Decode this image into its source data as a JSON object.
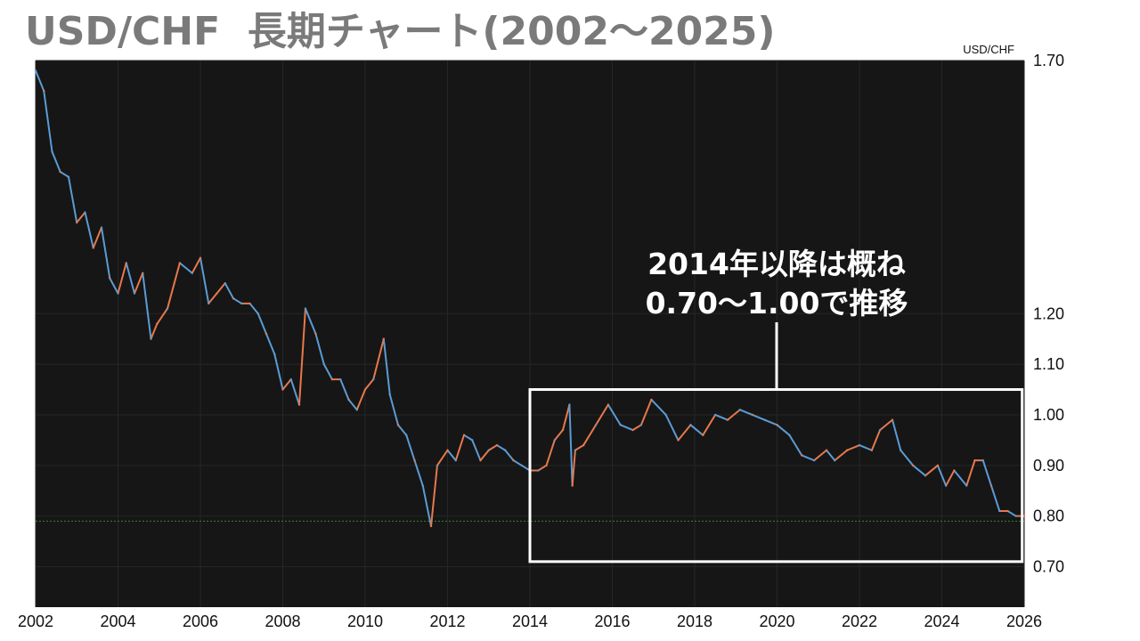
{
  "title": "USD/CHF  長期チャート(2002～2025)",
  "chart_data": {
    "type": "line",
    "series": [
      {
        "name": "USD/CHF",
        "x": [
          2002.0,
          2002.2,
          2002.4,
          2002.6,
          2002.8,
          2003.0,
          2003.2,
          2003.4,
          2003.6,
          2003.8,
          2004.0,
          2004.2,
          2004.4,
          2004.6,
          2004.8,
          2004.95,
          2005.2,
          2005.5,
          2005.8,
          2006.0,
          2006.2,
          2006.4,
          2006.6,
          2006.8,
          2007.0,
          2007.2,
          2007.4,
          2007.6,
          2007.8,
          2008.0,
          2008.2,
          2008.4,
          2008.55,
          2008.8,
          2009.0,
          2009.2,
          2009.4,
          2009.6,
          2009.8,
          2010.0,
          2010.2,
          2010.45,
          2010.6,
          2010.8,
          2011.0,
          2011.2,
          2011.4,
          2011.6,
          2011.75,
          2012.0,
          2012.2,
          2012.4,
          2012.6,
          2012.8,
          2013.0,
          2013.2,
          2013.4,
          2013.6,
          2013.8,
          2014.0,
          2014.2,
          2014.4,
          2014.6,
          2014.8,
          2014.96,
          2015.03,
          2015.1,
          2015.3,
          2015.6,
          2015.9,
          2016.2,
          2016.5,
          2016.7,
          2016.95,
          2017.3,
          2017.6,
          2017.9,
          2018.2,
          2018.5,
          2018.8,
          2019.1,
          2019.4,
          2019.7,
          2020.0,
          2020.3,
          2020.6,
          2020.9,
          2021.2,
          2021.4,
          2021.7,
          2022.0,
          2022.3,
          2022.5,
          2022.8,
          2023.0,
          2023.3,
          2023.6,
          2023.9,
          2024.1,
          2024.3,
          2024.6,
          2024.8,
          2025.0,
          2025.2,
          2025.4,
          2025.6,
          2025.8,
          2026.0
        ],
        "y": [
          1.68,
          1.64,
          1.52,
          1.48,
          1.47,
          1.38,
          1.4,
          1.33,
          1.37,
          1.27,
          1.24,
          1.3,
          1.24,
          1.28,
          1.15,
          1.18,
          1.21,
          1.3,
          1.28,
          1.31,
          1.22,
          1.24,
          1.26,
          1.23,
          1.22,
          1.22,
          1.2,
          1.16,
          1.12,
          1.05,
          1.07,
          1.02,
          1.21,
          1.16,
          1.1,
          1.07,
          1.07,
          1.03,
          1.01,
          1.05,
          1.07,
          1.15,
          1.04,
          0.98,
          0.96,
          0.91,
          0.86,
          0.78,
          0.9,
          0.93,
          0.91,
          0.96,
          0.95,
          0.91,
          0.93,
          0.94,
          0.93,
          0.91,
          0.9,
          0.89,
          0.89,
          0.9,
          0.95,
          0.97,
          1.02,
          0.86,
          0.93,
          0.94,
          0.98,
          1.02,
          0.98,
          0.97,
          0.98,
          1.03,
          1.0,
          0.95,
          0.98,
          0.96,
          1.0,
          0.99,
          1.01,
          1.0,
          0.99,
          0.98,
          0.96,
          0.92,
          0.91,
          0.93,
          0.91,
          0.93,
          0.94,
          0.93,
          0.97,
          0.99,
          0.93,
          0.9,
          0.88,
          0.9,
          0.86,
          0.89,
          0.86,
          0.91,
          0.91,
          0.86,
          0.81,
          0.81,
          0.8,
          0.8
        ]
      }
    ],
    "xlim": [
      2002,
      2026
    ],
    "ylim": [
      0.62,
      1.7
    ],
    "y_ticks": [
      "1.70",
      "1.20",
      "1.10",
      "1.00",
      "0.90",
      "0.80",
      "0.70"
    ],
    "x_ticks": [
      "2002",
      "2004",
      "2006",
      "2008",
      "2010",
      "2012",
      "2014",
      "2016",
      "2018",
      "2020",
      "2022",
      "2024",
      "2026"
    ],
    "reference_line": 0.79,
    "series_label": "USD/CHF",
    "annotation": {
      "lines": [
        "2014年以降は概ね",
        "0.70～1.00で推移"
      ],
      "box_x_range": [
        2014.0,
        2025.95
      ],
      "box_y_range": [
        0.71,
        1.05
      ]
    },
    "colors": {
      "background": "#161616",
      "up": "#e8784a",
      "down": "#5b9bd5",
      "grid": "#262626",
      "reference": "#2e8b2e",
      "annotation": "#ffffff"
    }
  }
}
